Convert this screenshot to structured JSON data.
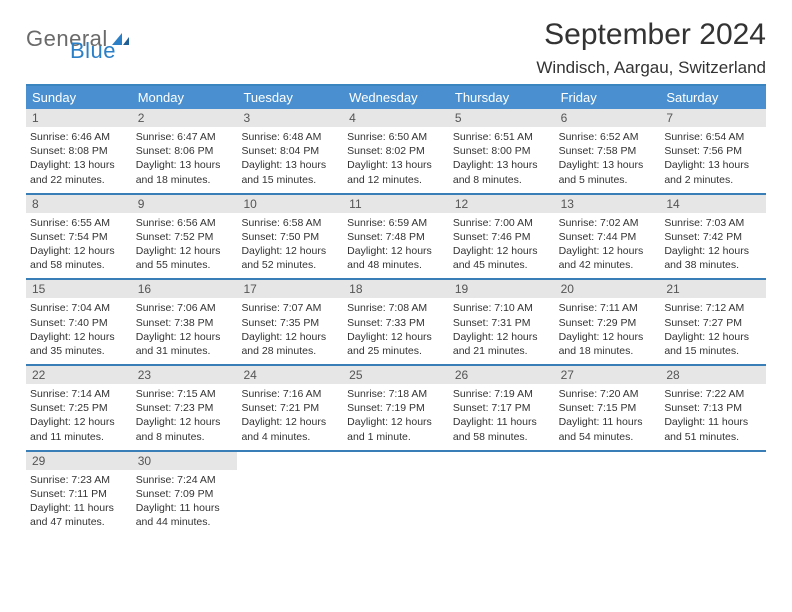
{
  "brand": {
    "word1": "General",
    "word2": "Blue"
  },
  "title": "September 2024",
  "location": "Windisch, Aargau, Switzerland",
  "colors": {
    "header_bg": "#4a90d0",
    "header_border": "#3a84bf",
    "week_border": "#3a7eb8",
    "daynum_bg": "#e6e6e6",
    "text": "#333333",
    "logo_gray": "#6a6a6a",
    "logo_blue": "#2b7fc7"
  },
  "dow": [
    "Sunday",
    "Monday",
    "Tuesday",
    "Wednesday",
    "Thursday",
    "Friday",
    "Saturday"
  ],
  "weeks": [
    [
      {
        "n": "1",
        "sr": "Sunrise: 6:46 AM",
        "ss": "Sunset: 8:08 PM",
        "d1": "Daylight: 13 hours",
        "d2": "and 22 minutes."
      },
      {
        "n": "2",
        "sr": "Sunrise: 6:47 AM",
        "ss": "Sunset: 8:06 PM",
        "d1": "Daylight: 13 hours",
        "d2": "and 18 minutes."
      },
      {
        "n": "3",
        "sr": "Sunrise: 6:48 AM",
        "ss": "Sunset: 8:04 PM",
        "d1": "Daylight: 13 hours",
        "d2": "and 15 minutes."
      },
      {
        "n": "4",
        "sr": "Sunrise: 6:50 AM",
        "ss": "Sunset: 8:02 PM",
        "d1": "Daylight: 13 hours",
        "d2": "and 12 minutes."
      },
      {
        "n": "5",
        "sr": "Sunrise: 6:51 AM",
        "ss": "Sunset: 8:00 PM",
        "d1": "Daylight: 13 hours",
        "d2": "and 8 minutes."
      },
      {
        "n": "6",
        "sr": "Sunrise: 6:52 AM",
        "ss": "Sunset: 7:58 PM",
        "d1": "Daylight: 13 hours",
        "d2": "and 5 minutes."
      },
      {
        "n": "7",
        "sr": "Sunrise: 6:54 AM",
        "ss": "Sunset: 7:56 PM",
        "d1": "Daylight: 13 hours",
        "d2": "and 2 minutes."
      }
    ],
    [
      {
        "n": "8",
        "sr": "Sunrise: 6:55 AM",
        "ss": "Sunset: 7:54 PM",
        "d1": "Daylight: 12 hours",
        "d2": "and 58 minutes."
      },
      {
        "n": "9",
        "sr": "Sunrise: 6:56 AM",
        "ss": "Sunset: 7:52 PM",
        "d1": "Daylight: 12 hours",
        "d2": "and 55 minutes."
      },
      {
        "n": "10",
        "sr": "Sunrise: 6:58 AM",
        "ss": "Sunset: 7:50 PM",
        "d1": "Daylight: 12 hours",
        "d2": "and 52 minutes."
      },
      {
        "n": "11",
        "sr": "Sunrise: 6:59 AM",
        "ss": "Sunset: 7:48 PM",
        "d1": "Daylight: 12 hours",
        "d2": "and 48 minutes."
      },
      {
        "n": "12",
        "sr": "Sunrise: 7:00 AM",
        "ss": "Sunset: 7:46 PM",
        "d1": "Daylight: 12 hours",
        "d2": "and 45 minutes."
      },
      {
        "n": "13",
        "sr": "Sunrise: 7:02 AM",
        "ss": "Sunset: 7:44 PM",
        "d1": "Daylight: 12 hours",
        "d2": "and 42 minutes."
      },
      {
        "n": "14",
        "sr": "Sunrise: 7:03 AM",
        "ss": "Sunset: 7:42 PM",
        "d1": "Daylight: 12 hours",
        "d2": "and 38 minutes."
      }
    ],
    [
      {
        "n": "15",
        "sr": "Sunrise: 7:04 AM",
        "ss": "Sunset: 7:40 PM",
        "d1": "Daylight: 12 hours",
        "d2": "and 35 minutes."
      },
      {
        "n": "16",
        "sr": "Sunrise: 7:06 AM",
        "ss": "Sunset: 7:38 PM",
        "d1": "Daylight: 12 hours",
        "d2": "and 31 minutes."
      },
      {
        "n": "17",
        "sr": "Sunrise: 7:07 AM",
        "ss": "Sunset: 7:35 PM",
        "d1": "Daylight: 12 hours",
        "d2": "and 28 minutes."
      },
      {
        "n": "18",
        "sr": "Sunrise: 7:08 AM",
        "ss": "Sunset: 7:33 PM",
        "d1": "Daylight: 12 hours",
        "d2": "and 25 minutes."
      },
      {
        "n": "19",
        "sr": "Sunrise: 7:10 AM",
        "ss": "Sunset: 7:31 PM",
        "d1": "Daylight: 12 hours",
        "d2": "and 21 minutes."
      },
      {
        "n": "20",
        "sr": "Sunrise: 7:11 AM",
        "ss": "Sunset: 7:29 PM",
        "d1": "Daylight: 12 hours",
        "d2": "and 18 minutes."
      },
      {
        "n": "21",
        "sr": "Sunrise: 7:12 AM",
        "ss": "Sunset: 7:27 PM",
        "d1": "Daylight: 12 hours",
        "d2": "and 15 minutes."
      }
    ],
    [
      {
        "n": "22",
        "sr": "Sunrise: 7:14 AM",
        "ss": "Sunset: 7:25 PM",
        "d1": "Daylight: 12 hours",
        "d2": "and 11 minutes."
      },
      {
        "n": "23",
        "sr": "Sunrise: 7:15 AM",
        "ss": "Sunset: 7:23 PM",
        "d1": "Daylight: 12 hours",
        "d2": "and 8 minutes."
      },
      {
        "n": "24",
        "sr": "Sunrise: 7:16 AM",
        "ss": "Sunset: 7:21 PM",
        "d1": "Daylight: 12 hours",
        "d2": "and 4 minutes."
      },
      {
        "n": "25",
        "sr": "Sunrise: 7:18 AM",
        "ss": "Sunset: 7:19 PM",
        "d1": "Daylight: 12 hours",
        "d2": "and 1 minute."
      },
      {
        "n": "26",
        "sr": "Sunrise: 7:19 AM",
        "ss": "Sunset: 7:17 PM",
        "d1": "Daylight: 11 hours",
        "d2": "and 58 minutes."
      },
      {
        "n": "27",
        "sr": "Sunrise: 7:20 AM",
        "ss": "Sunset: 7:15 PM",
        "d1": "Daylight: 11 hours",
        "d2": "and 54 minutes."
      },
      {
        "n": "28",
        "sr": "Sunrise: 7:22 AM",
        "ss": "Sunset: 7:13 PM",
        "d1": "Daylight: 11 hours",
        "d2": "and 51 minutes."
      }
    ],
    [
      {
        "n": "29",
        "sr": "Sunrise: 7:23 AM",
        "ss": "Sunset: 7:11 PM",
        "d1": "Daylight: 11 hours",
        "d2": "and 47 minutes."
      },
      {
        "n": "30",
        "sr": "Sunrise: 7:24 AM",
        "ss": "Sunset: 7:09 PM",
        "d1": "Daylight: 11 hours",
        "d2": "and 44 minutes."
      },
      {
        "empty": true
      },
      {
        "empty": true
      },
      {
        "empty": true
      },
      {
        "empty": true
      },
      {
        "empty": true
      }
    ]
  ]
}
